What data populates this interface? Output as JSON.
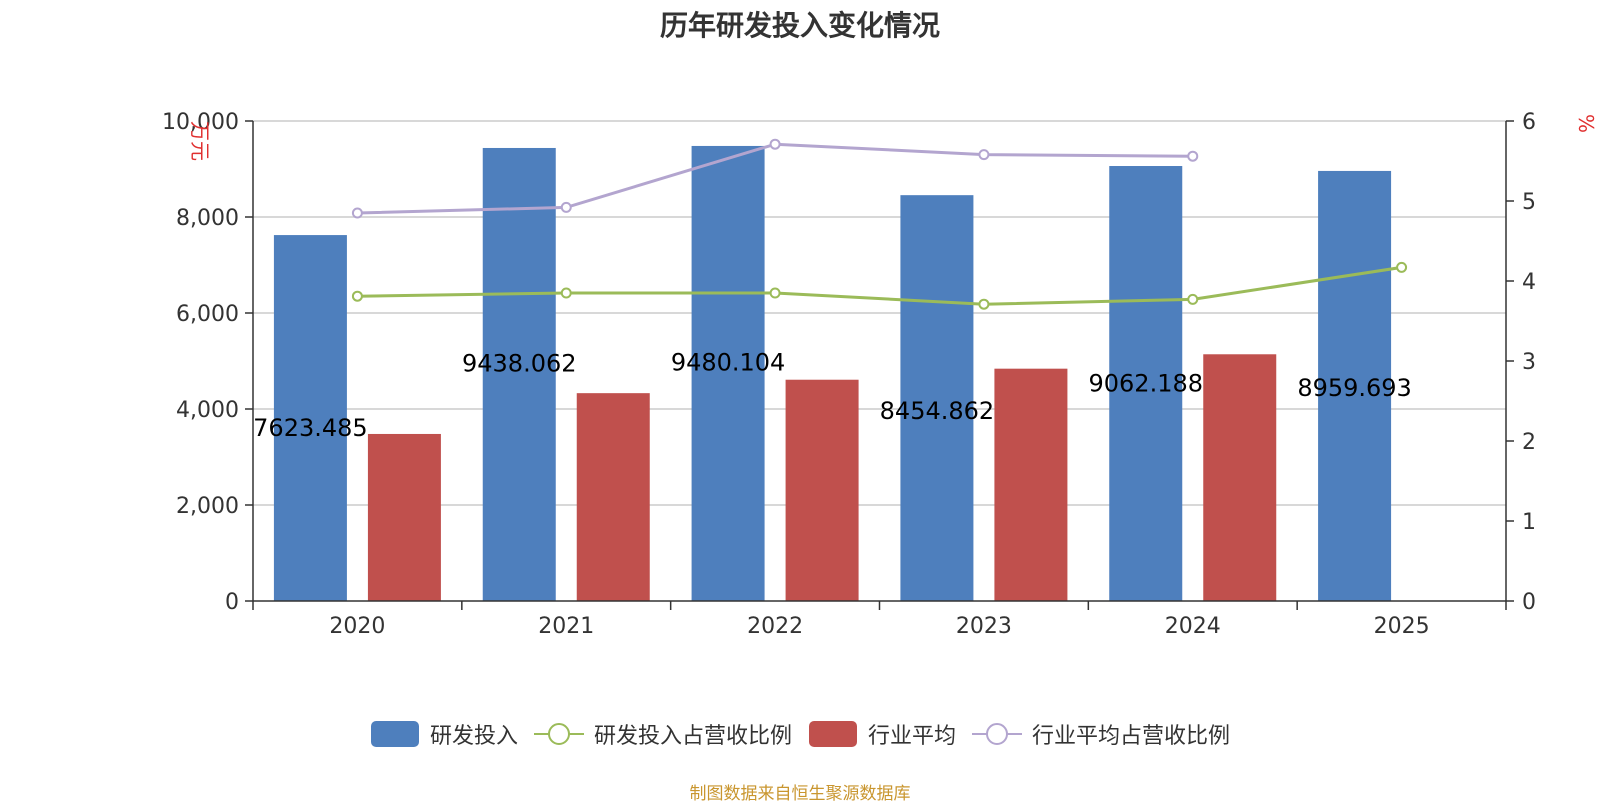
{
  "chart_data": {
    "type": "bar",
    "title": "历年研发投入变化情况",
    "categories": [
      "2020",
      "2021",
      "2022",
      "2023",
      "2024",
      "2025"
    ],
    "y_left": {
      "unit_label": "万元",
      "range": [
        0,
        10000
      ],
      "ticks": [
        "0",
        "2,000",
        "4,000",
        "6,000",
        "8,000",
        "10,000"
      ]
    },
    "y_right": {
      "unit_label": "%",
      "range": [
        0,
        6
      ],
      "ticks": [
        "0",
        "1",
        "2",
        "3",
        "4",
        "5",
        "6"
      ]
    },
    "series": [
      {
        "name": "研发投入",
        "kind": "bar",
        "axis": "left",
        "color": "#4e7fbd",
        "values": [
          7623.485,
          9438.062,
          9480.104,
          8454.862,
          9062.188,
          8959.693
        ],
        "labels": [
          "7623.485",
          "9438.062",
          "9480.104",
          "8454.862",
          "9062.188",
          "8959.693"
        ]
      },
      {
        "name": "研发投入占营收比例",
        "kind": "line",
        "axis": "right",
        "color": "#9bbb59",
        "values": [
          3.81,
          3.85,
          3.85,
          3.71,
          3.77,
          4.17
        ]
      },
      {
        "name": "行业平均",
        "kind": "bar",
        "axis": "left",
        "color": "#c0504d",
        "values": [
          3480,
          4330,
          4610,
          4840,
          5140,
          null
        ]
      },
      {
        "name": "行业平均占营收比例",
        "kind": "line",
        "axis": "right",
        "color": "#b3a5cf",
        "values": [
          4.85,
          4.92,
          5.71,
          5.58,
          5.56,
          null
        ]
      }
    ],
    "grid": true,
    "legend_position": "bottom"
  },
  "source": "制图数据来自恒生聚源数据库"
}
